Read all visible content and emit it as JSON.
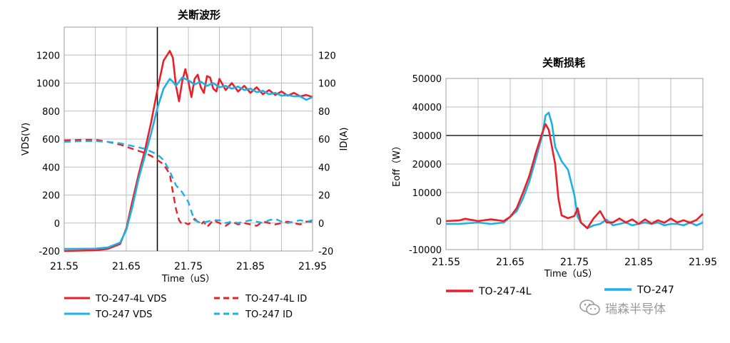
{
  "colors": {
    "red": "#e8202a",
    "blue": "#1fb0e3",
    "grid": "#bdbdbd",
    "black": "#000000"
  },
  "watermark": {
    "text": "瑞森半导体",
    "icon": "wechat-icon"
  },
  "chart_data": [
    {
      "type": "line",
      "title": "关断波形",
      "xlabel": "Time（uS）",
      "ylabel": "VDS(V)",
      "y2label": "ID(A)",
      "xlim": [
        21.55,
        21.95
      ],
      "ylim": [
        -200,
        1400
      ],
      "y2lim": [
        -20,
        140
      ],
      "xticks": [
        "21.55",
        "21.65",
        "21.75",
        "21.85",
        "21.95"
      ],
      "yticks": [
        "-200",
        "0",
        "200",
        "400",
        "600",
        "800",
        "1000",
        "1200"
      ],
      "y2ticks": [
        "-20",
        "0",
        "20",
        "40",
        "60",
        "80",
        "100",
        "120"
      ],
      "grid": true,
      "marker_line_x": 21.7,
      "legend_position": "bottom",
      "series": [
        {
          "name": "TO-247-4L VDS",
          "axis": "left",
          "style": "solid",
          "color": "red",
          "x": [
            21.55,
            21.6,
            21.62,
            21.64,
            21.65,
            21.66,
            21.67,
            21.68,
            21.69,
            21.7,
            21.71,
            21.72,
            21.725,
            21.73,
            21.735,
            21.74,
            21.745,
            21.75,
            21.755,
            21.76,
            21.765,
            21.77,
            21.775,
            21.78,
            21.785,
            21.79,
            21.795,
            21.8,
            21.81,
            21.82,
            21.83,
            21.84,
            21.85,
            21.86,
            21.87,
            21.88,
            21.89,
            21.9,
            21.91,
            21.92,
            21.93,
            21.94,
            21.95
          ],
          "y": [
            -200,
            -195,
            -185,
            -150,
            -40,
            160,
            350,
            520,
            720,
            950,
            1160,
            1230,
            1180,
            980,
            870,
            1010,
            1100,
            1010,
            900,
            1030,
            1060,
            970,
            930,
            1050,
            1040,
            960,
            940,
            1030,
            950,
            1000,
            940,
            980,
            930,
            970,
            920,
            950,
            915,
            940,
            910,
            930,
            905,
            915,
            900
          ]
        },
        {
          "name": "TO-247 VDS",
          "axis": "left",
          "style": "solid",
          "color": "blue",
          "x": [
            21.55,
            21.6,
            21.62,
            21.64,
            21.65,
            21.66,
            21.67,
            21.68,
            21.69,
            21.7,
            21.71,
            21.72,
            21.725,
            21.73,
            21.74,
            21.75,
            21.76,
            21.77,
            21.78,
            21.79,
            21.8,
            21.81,
            21.82,
            21.83,
            21.84,
            21.85,
            21.86,
            21.87,
            21.88,
            21.89,
            21.9,
            21.91,
            21.92,
            21.93,
            21.94,
            21.95
          ],
          "y": [
            -185,
            -183,
            -175,
            -140,
            -50,
            120,
            320,
            480,
            640,
            820,
            960,
            1030,
            1010,
            980,
            1040,
            1020,
            990,
            1010,
            980,
            1000,
            970,
            980,
            960,
            975,
            950,
            960,
            935,
            945,
            920,
            930,
            910,
            915,
            905,
            905,
            880,
            900
          ]
        },
        {
          "name": "TO-247-4L ID",
          "axis": "right",
          "style": "dashed",
          "color": "red",
          "x": [
            21.55,
            21.58,
            21.6,
            21.62,
            21.64,
            21.66,
            21.68,
            21.69,
            21.7,
            21.71,
            21.72,
            21.725,
            21.73,
            21.735,
            21.74,
            21.745,
            21.75,
            21.76,
            21.77,
            21.775,
            21.78,
            21.79,
            21.8,
            21.81,
            21.82,
            21.83,
            21.84,
            21.85,
            21.86,
            21.87,
            21.88,
            21.89,
            21.9,
            21.91,
            21.92,
            21.93,
            21.94,
            21.95
          ],
          "y": [
            59,
            59.5,
            59.5,
            58,
            56,
            53,
            50,
            48,
            45,
            42,
            35,
            22,
            10,
            2,
            -1,
            0,
            -1,
            3,
            -1,
            1,
            -3,
            2,
            0,
            -2,
            1,
            -1,
            0,
            -1,
            -2,
            1,
            0,
            -1,
            0,
            1,
            0,
            -1,
            1,
            1
          ]
        },
        {
          "name": "TO-247 ID",
          "axis": "right",
          "style": "dashed",
          "color": "blue",
          "x": [
            21.55,
            21.58,
            21.6,
            21.62,
            21.64,
            21.66,
            21.68,
            21.7,
            21.71,
            21.72,
            21.73,
            21.74,
            21.75,
            21.755,
            21.76,
            21.77,
            21.78,
            21.79,
            21.8,
            21.81,
            21.82,
            21.83,
            21.84,
            21.85,
            21.86,
            21.87,
            21.88,
            21.89,
            21.9,
            21.91,
            21.92,
            21.93,
            21.94,
            21.95
          ],
          "y": [
            58,
            58.5,
            58.5,
            58,
            57,
            55,
            53,
            49,
            45,
            37,
            27,
            22,
            15,
            8,
            2,
            0,
            1,
            2,
            2,
            0,
            1,
            0,
            1,
            2,
            1,
            0,
            2,
            3,
            1,
            0,
            1,
            2,
            1,
            2
          ]
        }
      ]
    },
    {
      "type": "line",
      "title": "关断损耗",
      "xlabel": "Time（uS）",
      "ylabel": "Eoff（W）",
      "xlim": [
        21.55,
        21.95
      ],
      "ylim": [
        -10000,
        50000
      ],
      "xticks": [
        "21.55",
        "21.65",
        "21.75",
        "21.85",
        "21.95"
      ],
      "yticks": [
        "-10000",
        "0",
        "10000",
        "20000",
        "30000",
        "40000",
        "50000"
      ],
      "grid": true,
      "legend_position": "bottom",
      "series": [
        {
          "name": "TO-247-4L",
          "style": "solid",
          "color": "red",
          "x": [
            21.55,
            21.57,
            21.58,
            21.6,
            21.62,
            21.64,
            21.65,
            21.66,
            21.67,
            21.68,
            21.69,
            21.7,
            21.705,
            21.71,
            21.72,
            21.725,
            21.73,
            21.74,
            21.75,
            21.755,
            21.76,
            21.77,
            21.78,
            21.79,
            21.8,
            21.81,
            21.82,
            21.83,
            21.84,
            21.85,
            21.86,
            21.87,
            21.88,
            21.89,
            21.9,
            21.91,
            21.92,
            21.93,
            21.94,
            21.95
          ],
          "y": [
            0,
            200,
            800,
            0,
            600,
            0,
            1500,
            4500,
            10000,
            16000,
            24000,
            31000,
            34000,
            32000,
            20000,
            8000,
            2000,
            1000,
            1800,
            4500,
            -500,
            -2500,
            1000,
            3500,
            -500,
            -500,
            900,
            -500,
            600,
            -1000,
            600,
            -900,
            300,
            -600,
            900,
            -500,
            300,
            -600,
            400,
            2500
          ]
        },
        {
          "name": "TO-247",
          "style": "solid",
          "color": "blue",
          "x": [
            21.55,
            21.57,
            21.6,
            21.62,
            21.64,
            21.65,
            21.66,
            21.67,
            21.68,
            21.69,
            21.7,
            21.705,
            21.71,
            21.715,
            21.72,
            21.73,
            21.74,
            21.75,
            21.755,
            21.76,
            21.77,
            21.78,
            21.79,
            21.8,
            21.81,
            21.82,
            21.83,
            21.84,
            21.85,
            21.86,
            21.87,
            21.88,
            21.89,
            21.9,
            21.91,
            21.92,
            21.93,
            21.94,
            21.95
          ],
          "y": [
            -1000,
            -1000,
            -500,
            -1000,
            -500,
            1500,
            3500,
            8000,
            14000,
            22000,
            30000,
            37000,
            38000,
            34000,
            26000,
            21000,
            18000,
            9000,
            1500,
            -500,
            -2500,
            -1500,
            -1000,
            500,
            -1500,
            -1000,
            -500,
            -1500,
            -1000,
            -500,
            -1000,
            -500,
            -1500,
            -1000,
            -1000,
            -1500,
            -500,
            -1500,
            -500
          ]
        }
      ]
    }
  ]
}
